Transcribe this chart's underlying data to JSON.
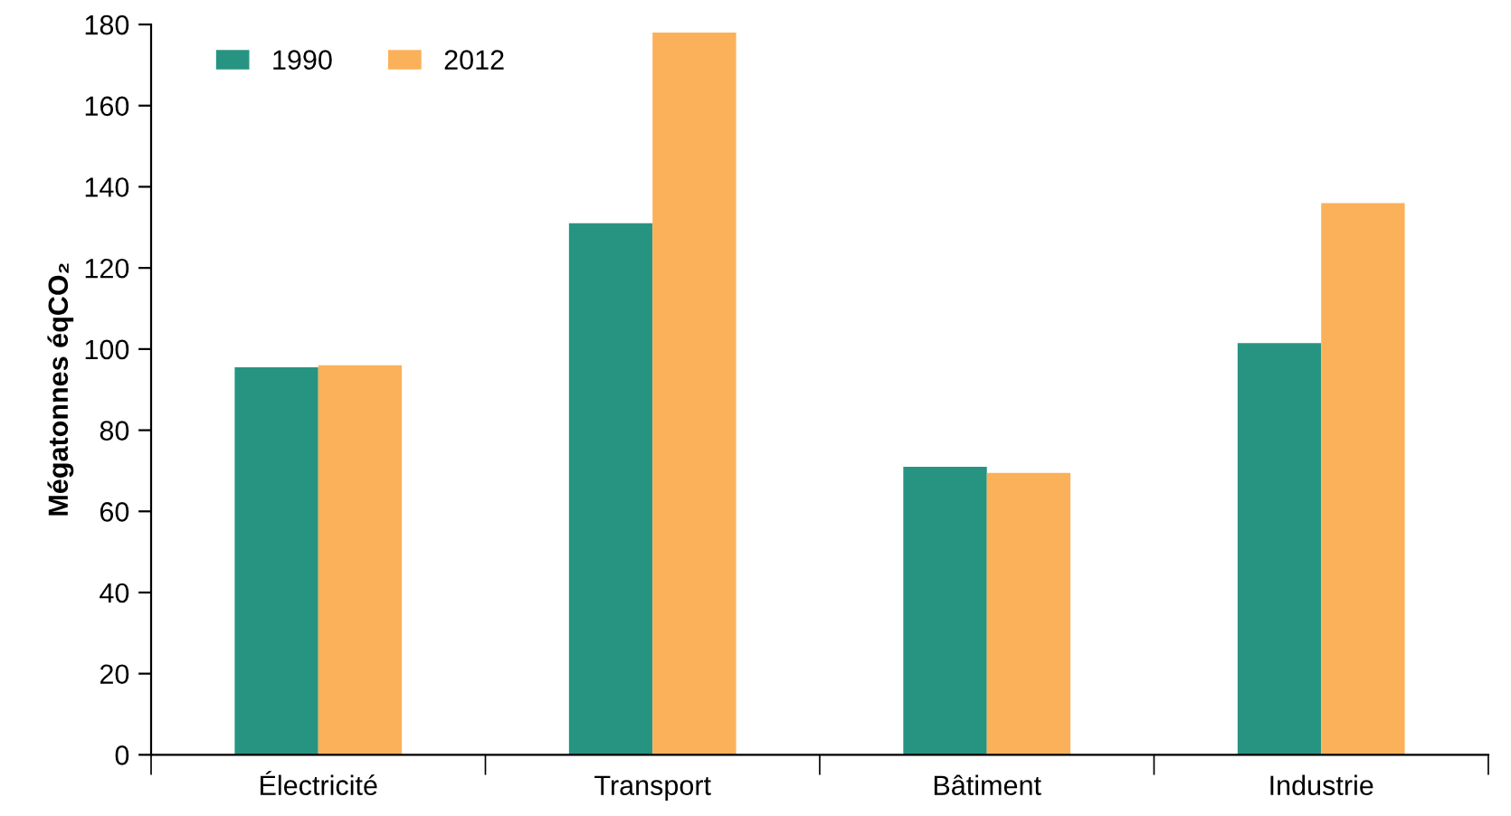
{
  "chart_data": {
    "type": "bar",
    "ylabel": "Mégatonnes éqCO₂",
    "categories": [
      "Électricité",
      "Transport",
      "Bâtiment",
      "Industrie"
    ],
    "series": [
      {
        "name": "1990",
        "color": "#279482",
        "values": [
          95.5,
          131,
          71,
          101.5
        ]
      },
      {
        "name": "2012",
        "color": "#fbb159",
        "values": [
          96,
          178,
          69.5,
          136
        ]
      }
    ],
    "ylim": [
      0,
      180
    ],
    "yticks": [
      0,
      20,
      40,
      60,
      80,
      100,
      120,
      140,
      160,
      180
    ],
    "grid": false,
    "legend": "top left"
  }
}
